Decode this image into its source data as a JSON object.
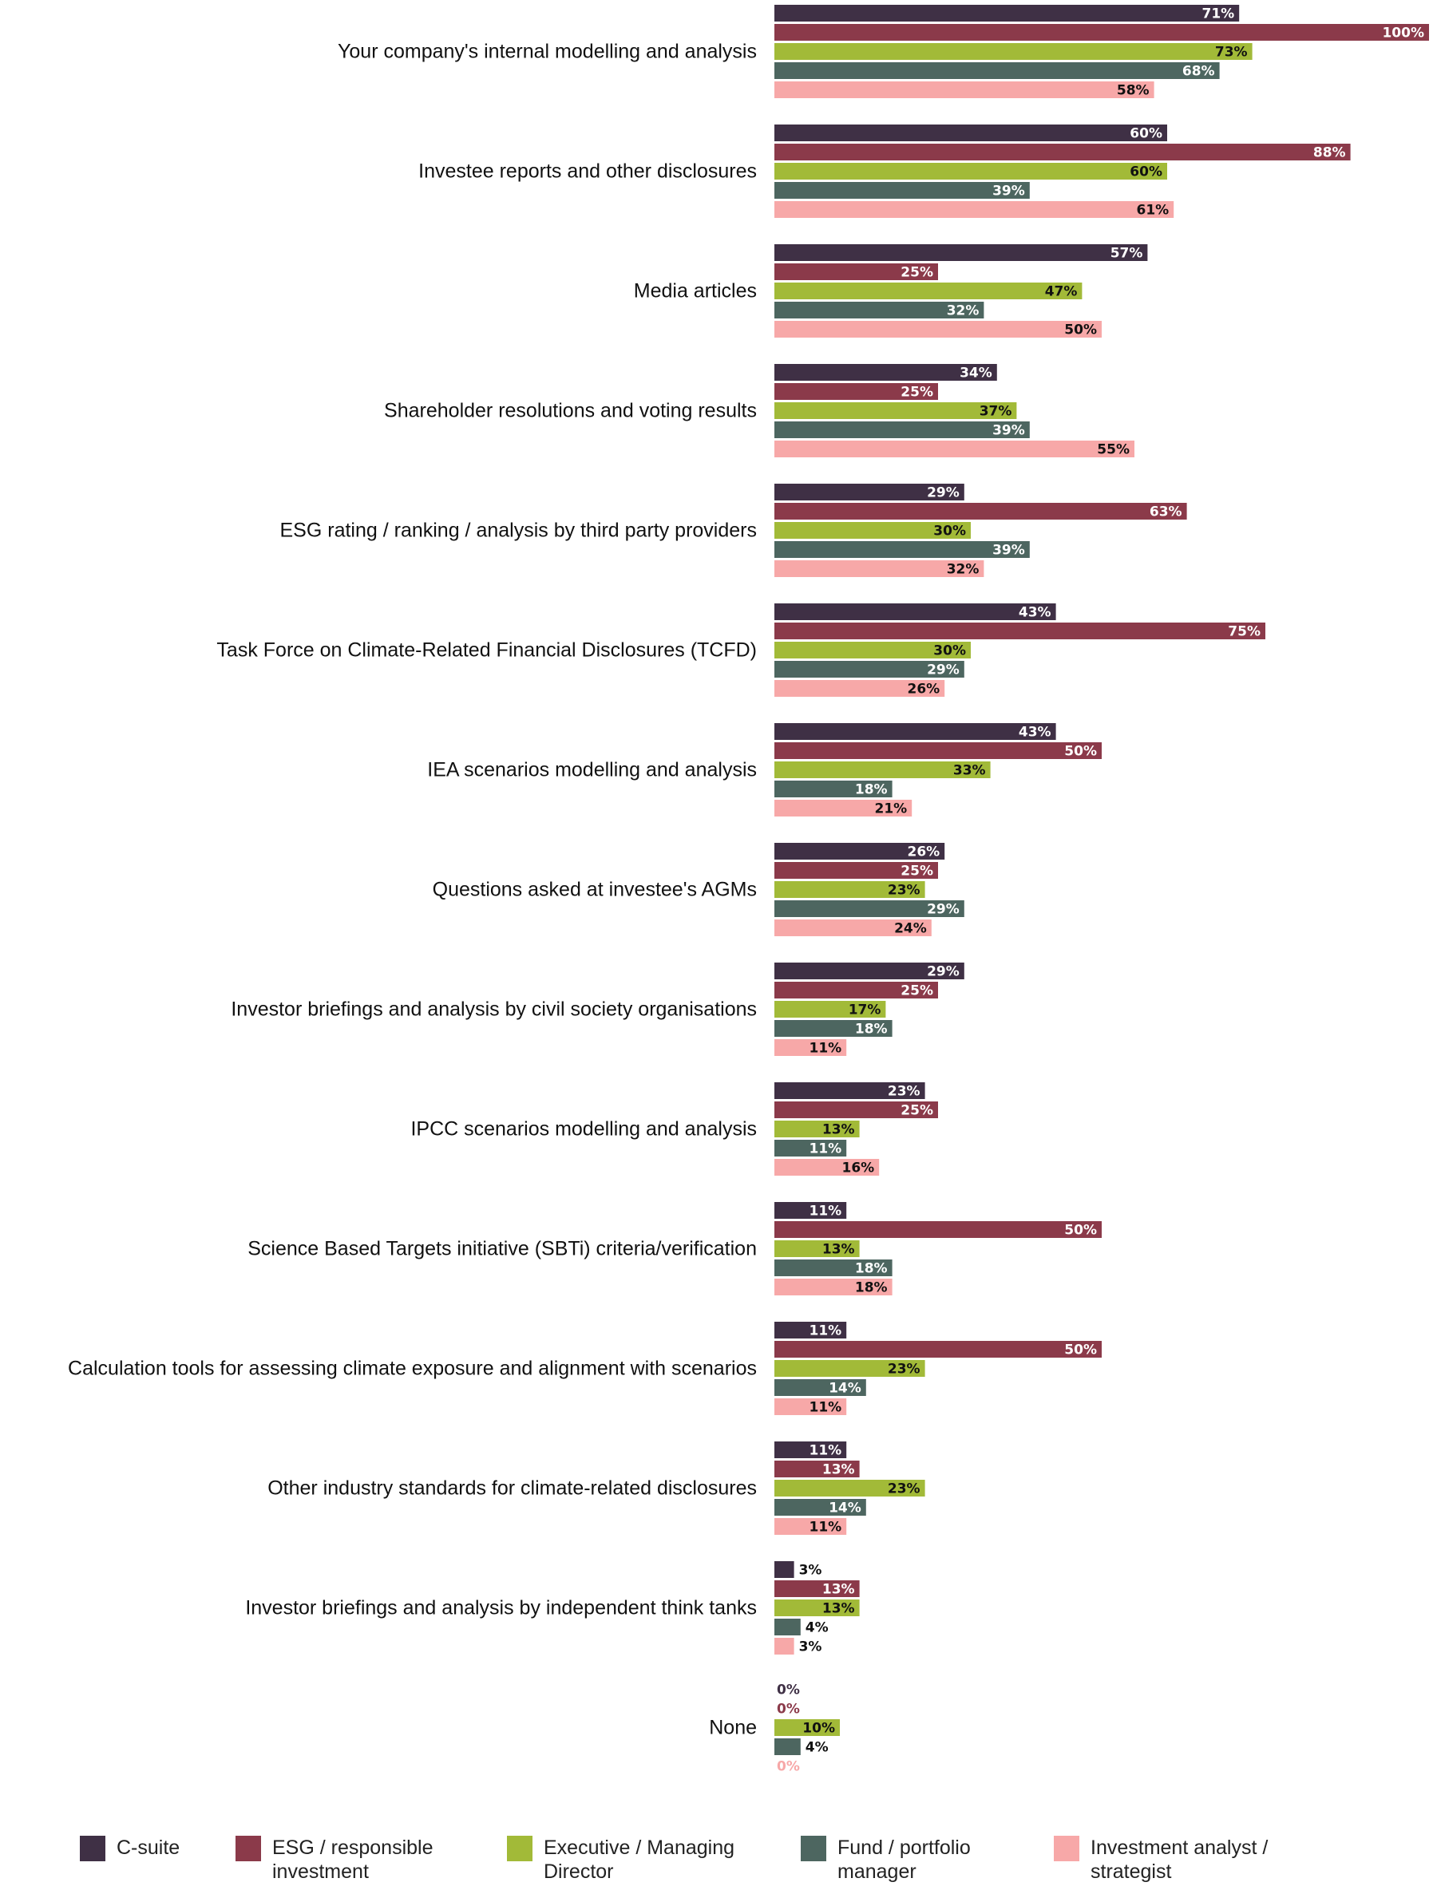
{
  "chart_data": {
    "type": "bar",
    "orientation": "horizontal",
    "title": "",
    "xlabel": "",
    "ylabel": "",
    "xlim": [
      0,
      100
    ],
    "value_suffix": "%",
    "grid": false,
    "legend_position": "bottom",
    "categories": [
      "Your company's internal modelling and analysis",
      "Investee reports and other disclosures",
      "Media articles",
      "Shareholder resolutions and voting results",
      "ESG rating / ranking / analysis by third party providers",
      "Task Force on Climate-Related Financial Disclosures (TCFD)",
      "IEA scenarios modelling and analysis",
      "Questions asked at investee's AGMs",
      "Investor briefings and analysis by civil society organisations",
      "IPCC scenarios modelling and analysis",
      "Science Based Targets initiative (SBTi) criteria/verification",
      "Calculation tools for assessing climate exposure and alignment with scenarios",
      "Other industry standards for climate-related disclosures",
      "Investor briefings and analysis by independent think tanks",
      "None"
    ],
    "series": [
      {
        "name": "C-suite",
        "color": "#3f3045",
        "label_color": "#ffffff",
        "values": [
          71,
          60,
          57,
          34,
          29,
          43,
          43,
          26,
          29,
          23,
          11,
          11,
          11,
          3,
          0
        ]
      },
      {
        "name": "ESG / responsible investment",
        "color": "#8b3a4a",
        "label_color": "#ffffff",
        "values": [
          100,
          88,
          25,
          25,
          63,
          75,
          50,
          25,
          25,
          25,
          50,
          50,
          13,
          13,
          0
        ]
      },
      {
        "name": "Executive / Managing Director",
        "color": "#a2ba38",
        "label_color": "#111111",
        "values": [
          73,
          60,
          47,
          37,
          30,
          30,
          33,
          23,
          17,
          13,
          13,
          23,
          23,
          13,
          10
        ]
      },
      {
        "name": "Fund / portfolio manager",
        "color": "#4d6660",
        "label_color": "#ffffff",
        "values": [
          68,
          39,
          32,
          39,
          39,
          29,
          18,
          29,
          18,
          11,
          18,
          14,
          14,
          4,
          4
        ]
      },
      {
        "name": "Investment analyst / strategist",
        "color": "#f7a8a8",
        "label_color": "#111111",
        "values": [
          58,
          61,
          50,
          55,
          32,
          26,
          21,
          24,
          11,
          16,
          18,
          11,
          11,
          3,
          0
        ]
      }
    ]
  },
  "legend": [
    {
      "label": "C-suite",
      "color": "#3f3045"
    },
    {
      "label": "ESG / responsible\ninvestment",
      "color": "#8b3a4a"
    },
    {
      "label": "Executive / Managing\nDirector",
      "color": "#a2ba38"
    },
    {
      "label": "Fund / portfolio\nmanager",
      "color": "#4d6660"
    },
    {
      "label": "Investment analyst /\nstrategist",
      "color": "#f7a8a8"
    }
  ]
}
